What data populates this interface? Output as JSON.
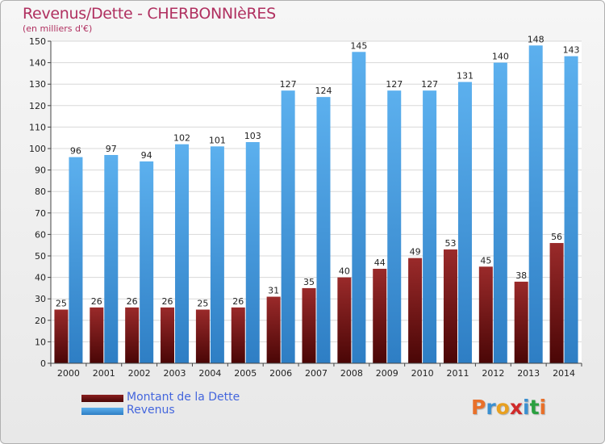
{
  "title": "Revenus/Dette - CHERBONNIèRES",
  "subtitle": "(en milliers d'€)",
  "chart_data": {
    "type": "bar",
    "categories": [
      "2000",
      "2001",
      "2002",
      "2003",
      "2004",
      "2005",
      "2006",
      "2007",
      "2008",
      "2009",
      "2010",
      "2011",
      "2012",
      "2013",
      "2014"
    ],
    "series": [
      {
        "name": "Montant de la Dette",
        "color": "#7a1a1a",
        "values": [
          25,
          26,
          26,
          26,
          25,
          26,
          31,
          35,
          40,
          44,
          49,
          53,
          45,
          38,
          56
        ]
      },
      {
        "name": "Revenus",
        "color": "#4a9fe0",
        "values": [
          96,
          97,
          94,
          102,
          101,
          103,
          127,
          124,
          145,
          127,
          127,
          131,
          140,
          148,
          143
        ]
      }
    ],
    "ylim": [
      0,
      150
    ],
    "yticks": [
      0,
      10,
      20,
      30,
      40,
      50,
      60,
      70,
      80,
      90,
      100,
      110,
      120,
      130,
      140,
      150
    ],
    "grid": true,
    "legend_position": "bottom-left"
  },
  "logo": {
    "text": "Proxiti",
    "letter_colors": [
      "#e8702a",
      "#3a8fd0",
      "#e8a020",
      "#d02a2a",
      "#3a8fd0",
      "#2aa040",
      "#e8702a"
    ]
  }
}
